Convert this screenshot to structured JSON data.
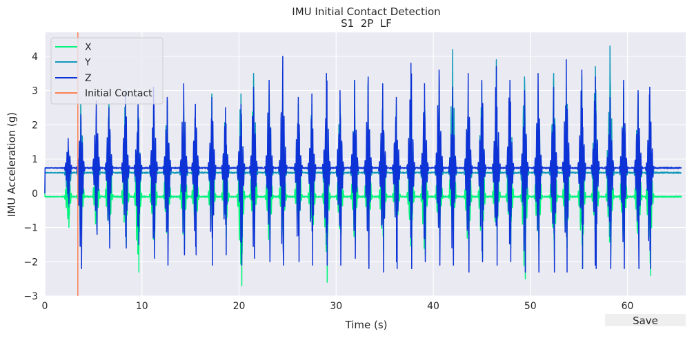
{
  "chart_data": {
    "type": "line",
    "title": "IMU Initial Contact Detection",
    "subtitle": "S1  2P  LF",
    "xlabel": "Time (s)",
    "ylabel": "IMU Acceleration (g)",
    "xlim": [
      0,
      66
    ],
    "ylim": [
      -3,
      4.7
    ],
    "xticks": [
      0,
      10,
      20,
      30,
      40,
      50,
      60
    ],
    "yticks": [
      -3,
      -2,
      -1,
      0,
      1,
      2,
      3,
      4
    ],
    "grid": true,
    "legend_position": "top-left",
    "background": "#eaeaf2",
    "series": [
      {
        "name": "X",
        "color": "#00f57d",
        "baseline": -0.1,
        "step_times": [
          2.4,
          3.7,
          5.3,
          6.6,
          8.3,
          9.6,
          11.2,
          12.6,
          14.3,
          15.5,
          17.2,
          18.6,
          20.2,
          21.5,
          23.1,
          24.5,
          26.1,
          27.5,
          29.0,
          30.4,
          31.9,
          33.3,
          34.8,
          36.2,
          37.7,
          39.1,
          40.6,
          42.0,
          43.6,
          45.0,
          46.5,
          47.9,
          49.4,
          50.8,
          52.4,
          53.7,
          55.3,
          56.7,
          58.2,
          59.6,
          61.1,
          62.3
        ],
        "step_peaks": [
          1.0,
          2.6,
          1.8,
          2.6,
          2.9,
          2.2,
          2.4,
          2.4,
          2.5,
          2.1,
          2.9,
          2.2,
          2.9,
          3.3,
          2.9,
          2.9,
          2.6,
          2.2,
          2.4,
          2.6,
          2.8,
          2.8,
          2.6,
          2.4,
          3.1,
          2.3,
          2.6,
          3.8,
          2.3,
          2.8,
          3.3,
          2.8,
          3.2,
          2.6,
          3.3,
          2.6,
          3.0,
          3.1,
          3.5,
          2.6,
          2.6,
          2.5
        ],
        "step_troughs": [
          -1.0,
          -1.2,
          -1.1,
          -1.3,
          -1.5,
          -2.3,
          -1.7,
          -1.3,
          -1.6,
          -1.3,
          -1.4,
          -1.3,
          -2.7,
          -1.4,
          -1.7,
          -1.6,
          -1.2,
          -1.7,
          -2.6,
          -1.2,
          -1.4,
          -1.2,
          -1.7,
          -1.3,
          -1.7,
          -1.8,
          -1.3,
          -1.2,
          -1.9,
          -1.9,
          -1.4,
          -1.6,
          -2.5,
          -1.7,
          -1.9,
          -1.6,
          -2.2,
          -1.6,
          -1.9,
          -1.6,
          -1.6,
          -2.4
        ]
      },
      {
        "name": "Y",
        "color": "#1098b9",
        "baseline": 0.6,
        "step_times": [
          2.4,
          3.7,
          5.3,
          6.6,
          8.3,
          9.6,
          11.2,
          12.6,
          14.3,
          15.5,
          17.2,
          18.6,
          20.2,
          21.5,
          23.1,
          24.5,
          26.1,
          27.5,
          29.0,
          30.4,
          31.9,
          33.3,
          34.8,
          36.2,
          37.7,
          39.1,
          40.6,
          42.0,
          43.6,
          45.0,
          46.5,
          47.9,
          49.4,
          50.8,
          52.4,
          53.7,
          55.3,
          56.7,
          58.2,
          59.6,
          61.1,
          62.3
        ],
        "step_peaks": [
          1.3,
          2.6,
          2.1,
          2.6,
          3.0,
          2.5,
          2.5,
          2.7,
          2.6,
          2.3,
          2.9,
          2.4,
          2.9,
          3.5,
          3.0,
          2.9,
          2.6,
          2.6,
          2.7,
          2.7,
          3.3,
          3.3,
          2.8,
          2.6,
          3.2,
          2.7,
          3.0,
          4.2,
          2.9,
          3.2,
          3.9,
          3.2,
          3.4,
          3.0,
          3.5,
          3.1,
          3.4,
          3.7,
          4.3,
          3.1,
          2.9,
          2.7
        ],
        "step_troughs": [
          -0.4,
          -0.6,
          -0.3,
          -0.6,
          -0.8,
          -1.2,
          -0.7,
          -0.6,
          -0.8,
          -0.7,
          -0.9,
          -0.7,
          -1.4,
          -0.8,
          -1.0,
          -0.8,
          -0.5,
          -1.1,
          -1.8,
          -0.8,
          -0.9,
          -0.6,
          -0.9,
          -0.9,
          -1.0,
          -1.2,
          -0.7,
          -0.7,
          -1.0,
          -1.1,
          -1.0,
          -1.0,
          -2.3,
          -0.9,
          -1.3,
          -1.0,
          -1.1,
          -1.0,
          -1.6,
          -1.1,
          -1.2,
          -1.6
        ]
      },
      {
        "name": "Z",
        "color": "#0d33d6",
        "baseline": 0.74,
        "step_times": [
          2.4,
          3.7,
          5.3,
          6.6,
          8.3,
          9.6,
          11.2,
          12.6,
          14.3,
          15.5,
          17.2,
          18.6,
          20.2,
          21.5,
          23.1,
          24.5,
          26.1,
          27.5,
          29.0,
          30.4,
          31.9,
          33.3,
          34.8,
          36.2,
          37.7,
          39.1,
          40.6,
          42.0,
          43.6,
          45.0,
          46.5,
          47.9,
          49.4,
          50.8,
          52.4,
          53.7,
          55.3,
          56.7,
          58.2,
          59.6,
          61.1,
          62.3
        ],
        "step_peaks": [
          1.6,
          2.3,
          2.7,
          2.5,
          2.9,
          2.6,
          3.1,
          2.8,
          3.2,
          2.6,
          2.8,
          2.5,
          2.6,
          3.1,
          3.3,
          4.0,
          2.8,
          2.9,
          3.5,
          3.0,
          3.3,
          3.4,
          3.2,
          2.8,
          3.8,
          3.2,
          3.6,
          3.1,
          3.5,
          3.3,
          3.7,
          3.3,
          3.0,
          3.5,
          3.1,
          3.9,
          3.6,
          3.4,
          2.8,
          3.3,
          3.0,
          3.1
        ],
        "step_troughs": [
          -0.3,
          -2.2,
          -1.2,
          -1.6,
          -1.6,
          -1.5,
          -1.9,
          -2.1,
          -1.8,
          -1.8,
          -2.1,
          -1.8,
          -2.1,
          -1.9,
          -2.0,
          -2.1,
          -2.0,
          -2.1,
          -2.1,
          -2.1,
          -1.9,
          -2.2,
          -2.3,
          -2.2,
          -2.2,
          -2.0,
          -2.1,
          -2.1,
          -2.3,
          -2.0,
          -2.1,
          -2.0,
          -2.3,
          -2.3,
          -2.3,
          -2.3,
          -2.2,
          -2.2,
          -2.2,
          -2.2,
          -2.2,
          -2.2
        ]
      }
    ],
    "vlines": [
      {
        "name": "Initial Contact",
        "x": 3.4,
        "color": "#ff7f50"
      }
    ]
  },
  "toolbar": {
    "save_label": "Save"
  }
}
